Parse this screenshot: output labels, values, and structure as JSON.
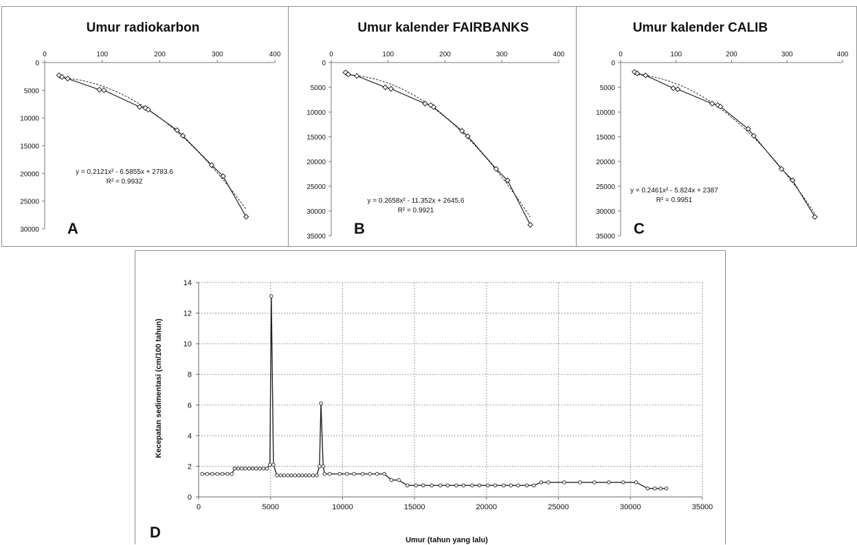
{
  "chart_data": [
    {
      "id": "A",
      "type": "scatter",
      "title": "Umur radiokarbon",
      "panel_letter": "A",
      "xlim": [
        0,
        400
      ],
      "ylim": [
        0,
        30000
      ],
      "y_inverted": true,
      "x_axis_position": "top",
      "xticks": [
        "0",
        "100",
        "200",
        "300",
        "400"
      ],
      "yticks": [
        "0",
        "5000",
        "10000",
        "15000",
        "20000",
        "25000",
        "30000"
      ],
      "trendline": {
        "type": "polynomial",
        "order": 2,
        "a": 0.2121,
        "b": -6.5855,
        "c": 2783.6
      },
      "equation": "y = 0.2121x² - 6.5855x + 2783.6",
      "r2": "R² = 0.9932",
      "series": [
        {
          "x": [
            25,
            30,
            40,
            95,
            103,
            165,
            175,
            180,
            230,
            240,
            290,
            310,
            350
          ],
          "y": [
            2300,
            2600,
            2900,
            4900,
            5000,
            8000,
            8200,
            8500,
            12200,
            13200,
            18500,
            20500,
            27800
          ]
        }
      ]
    },
    {
      "id": "B",
      "type": "scatter",
      "title": "Umur kalender FAIRBANKS",
      "panel_letter": "B",
      "xlim": [
        0,
        400
      ],
      "ylim": [
        0,
        35000
      ],
      "y_inverted": true,
      "x_axis_position": "top",
      "xticks": [
        "0",
        "100",
        "200",
        "300",
        "400"
      ],
      "yticks": [
        "0",
        "5000",
        "10000",
        "15000",
        "20000",
        "25000",
        "30000",
        "35000"
      ],
      "trendline": {
        "type": "polynomial",
        "order": 2,
        "a": 0.2658,
        "b": -11.352,
        "c": 2645.6
      },
      "equation": "y = 0.2658x² - 11.352x + 2645.6",
      "r2": "R² = 0.9921",
      "series": [
        {
          "x": [
            25,
            30,
            45,
            95,
            105,
            165,
            175,
            180,
            230,
            240,
            290,
            310,
            350
          ],
          "y": [
            2000,
            2400,
            2700,
            5000,
            5300,
            8300,
            8600,
            9000,
            13800,
            14900,
            21500,
            23800,
            32800
          ]
        }
      ]
    },
    {
      "id": "C",
      "type": "scatter",
      "title": "Umur kalender CALIB",
      "panel_letter": "C",
      "xlim": [
        0,
        400
      ],
      "ylim": [
        0,
        35000
      ],
      "y_inverted": true,
      "x_axis_position": "top",
      "xticks": [
        "0",
        "100",
        "200",
        "300",
        "400"
      ],
      "yticks": [
        "0",
        "5000",
        "10000",
        "15000",
        "20000",
        "25000",
        "30000",
        "35000"
      ],
      "trendline": {
        "type": "polynomial",
        "order": 2,
        "a": 0.2461,
        "b": -5.824,
        "c": 2387
      },
      "equation": "y = 0.2461x² - 5.824x + 2387",
      "r2": "R² = 0.9951",
      "series": [
        {
          "x": [
            25,
            30,
            45,
            95,
            103,
            165,
            175,
            180,
            230,
            240,
            290,
            310,
            350
          ],
          "y": [
            1900,
            2200,
            2600,
            5200,
            5400,
            8300,
            8600,
            8900,
            13400,
            14800,
            21500,
            23800,
            31200
          ]
        }
      ]
    },
    {
      "id": "D",
      "type": "line",
      "panel_letter": "D",
      "xlabel": "Umur (tahun yang lalu)",
      "ylabel": "Kecepatan sedimentasi (cm/100 tahun)",
      "xlim": [
        0,
        35000
      ],
      "ylim": [
        0,
        14
      ],
      "grid": true,
      "xticks": [
        "0",
        "5000",
        "10000",
        "15000",
        "20000",
        "25000",
        "30000",
        "35000"
      ],
      "yticks": [
        "0",
        "2",
        "4",
        "6",
        "8",
        "10",
        "12",
        "14"
      ],
      "series": [
        {
          "x": [
            250,
            600,
            950,
            1300,
            1650,
            2000,
            2300,
            2500,
            2750,
            3000,
            3250,
            3500,
            3750,
            4000,
            4250,
            4500,
            4750,
            4950,
            5050,
            5200,
            5450,
            5700,
            5950,
            6200,
            6450,
            6700,
            6950,
            7200,
            7450,
            7700,
            7950,
            8200,
            8400,
            8500,
            8650,
            8750,
            9100,
            9800,
            10300,
            10800,
            11400,
            11900,
            12400,
            12900,
            13400,
            13900,
            14500,
            15100,
            15600,
            16200,
            16800,
            17300,
            17900,
            18400,
            19000,
            19500,
            20100,
            20600,
            21200,
            21700,
            22200,
            22800,
            23300,
            23800,
            24300,
            25400,
            26500,
            27500,
            28500,
            29500,
            30400,
            31200,
            31700,
            32100,
            32500
          ],
          "y": [
            1.5,
            1.5,
            1.5,
            1.5,
            1.5,
            1.5,
            1.5,
            1.85,
            1.85,
            1.85,
            1.85,
            1.85,
            1.85,
            1.85,
            1.85,
            1.85,
            1.85,
            2.1,
            13.1,
            2.1,
            1.4,
            1.4,
            1.4,
            1.4,
            1.4,
            1.4,
            1.4,
            1.4,
            1.4,
            1.4,
            1.4,
            1.4,
            2.0,
            6.1,
            2.0,
            1.5,
            1.5,
            1.5,
            1.5,
            1.5,
            1.5,
            1.5,
            1.5,
            1.5,
            1.1,
            1.1,
            0.75,
            0.75,
            0.75,
            0.75,
            0.75,
            0.75,
            0.75,
            0.75,
            0.75,
            0.75,
            0.75,
            0.75,
            0.75,
            0.75,
            0.75,
            0.75,
            0.75,
            0.95,
            0.95,
            0.95,
            0.95,
            0.95,
            0.95,
            0.95,
            0.95,
            0.55,
            0.55,
            0.55,
            0.55
          ]
        }
      ]
    }
  ]
}
